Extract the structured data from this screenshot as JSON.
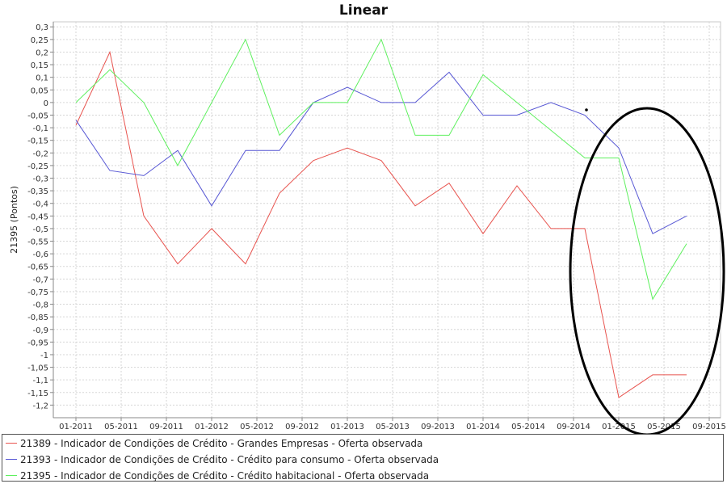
{
  "chart_data": {
    "type": "line",
    "title": "Linear",
    "xlabel": "",
    "ylabel": "21395 (Pontos)",
    "ylim": [
      -1.25,
      0.32
    ],
    "yticks": [
      0.3,
      0.25,
      0.2,
      0.15,
      0.1,
      0.05,
      0,
      -0.05,
      -0.1,
      -0.15,
      -0.2,
      -0.25,
      -0.3,
      -0.35,
      -0.4,
      -0.45,
      -0.5,
      -0.55,
      -0.6,
      -0.65,
      -0.7,
      -0.75,
      -0.8,
      -0.85,
      -0.9,
      -0.95,
      -1,
      -1.05,
      -1.1,
      -1.15,
      -1.2
    ],
    "ytick_labels": [
      "0,3",
      "0,25",
      "0,2",
      "0,15",
      "0,1",
      "0,05",
      "0",
      "-0,05",
      "-0,1",
      "-0,15",
      "-0,2",
      "-0,25",
      "-0,3",
      "-0,35",
      "-0,4",
      "-0,45",
      "-0,5",
      "-0,55",
      "-0,6",
      "-0,65",
      "-0,7",
      "-0,75",
      "-0,8",
      "-0,85",
      "-0,9",
      "-0,95",
      "-1",
      "-1,05",
      "-1,1",
      "-1,15",
      "-1,2"
    ],
    "xticks": [
      "01-2011",
      "05-2011",
      "09-2011",
      "01-2012",
      "05-2012",
      "09-2012",
      "01-2013",
      "05-2013",
      "09-2013",
      "01-2014",
      "05-2014",
      "09-2014",
      "01-2015",
      "05-2015",
      "09-2015"
    ],
    "x": [
      "01-2011",
      "04-2011",
      "07-2011",
      "10-2011",
      "01-2012",
      "04-2012",
      "07-2012",
      "10-2012",
      "01-2013",
      "04-2013",
      "07-2013",
      "10-2013",
      "01-2014",
      "04-2014",
      "07-2014",
      "10-2014",
      "01-2015",
      "04-2015",
      "07-2015"
    ],
    "grid": true,
    "legend_position": "bottom",
    "series": [
      {
        "name": "21389 - Indicador de Condições de Crédito - Grandes Empresas - Oferta observada",
        "color": "#e8544f",
        "values": [
          -0.09,
          0.2,
          -0.45,
          -0.64,
          -0.5,
          -0.64,
          -0.36,
          -0.23,
          -0.18,
          -0.23,
          -0.41,
          -0.32,
          -0.52,
          -0.33,
          -0.5,
          -0.5,
          -1.17,
          -1.08,
          -1.08
        ]
      },
      {
        "name": "21393 - Indicador de Condições de Crédito - Crédito para consumo - Oferta observada",
        "color": "#5757d4",
        "values": [
          -0.07,
          -0.27,
          -0.29,
          -0.19,
          -0.41,
          -0.19,
          -0.19,
          0.0,
          0.06,
          0.0,
          0.0,
          0.12,
          -0.05,
          -0.05,
          0.0,
          -0.05,
          -0.18,
          -0.52,
          -0.45
        ]
      },
      {
        "name": "21395 - Indicador de Condições de Crédito - Crédito habitacional - Oferta observada",
        "color": "#5ef05e",
        "values": [
          0.0,
          0.13,
          0.0,
          -0.25,
          0.0,
          0.25,
          -0.13,
          0.0,
          0.0,
          0.25,
          -0.13,
          -0.13,
          0.11,
          0.0,
          -0.11,
          -0.22,
          -0.22,
          -0.78,
          -0.56
        ]
      }
    ]
  }
}
